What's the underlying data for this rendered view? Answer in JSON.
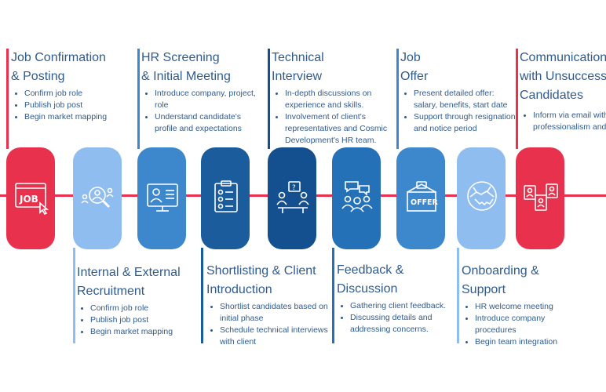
{
  "colors": {
    "red": "#e8324d",
    "light_blue": "#8fbdef",
    "mid_blue": "#3d87cc",
    "blue": "#2571b8",
    "dark_blue": "#1a5c9c",
    "navy": "#14508f",
    "text": "#2f5b8f"
  },
  "steps": [
    {
      "title_lines": [
        "Job Confirmation",
        "& Posting"
      ],
      "bullets": [
        "Confirm job role",
        "Publish job post",
        "Begin market mapping"
      ],
      "icon": "job-screen-icon",
      "color": "red"
    },
    {
      "title_lines": [
        "Internal & External",
        "Recruitment"
      ],
      "bullets": [
        "Confirm job role",
        "Publish job post",
        "Begin market mapping"
      ],
      "icon": "search-candidates-icon",
      "color": "light_blue"
    },
    {
      "title_lines": [
        "HR Screening",
        "& Initial Meeting"
      ],
      "bullets": [
        "Introduce company, project,",
        "role",
        "Understand candidate's",
        "profile and expectations"
      ],
      "icon": "video-call-icon",
      "color": "mid_blue"
    },
    {
      "title_lines": [
        "Shortlisting & Client",
        "Introduction"
      ],
      "bullets": [
        "Shortlist candidates based on",
        "initial phase",
        "Schedule technical interviews",
        "with client"
      ],
      "icon": "clipboard-list-icon",
      "color": "dark_blue"
    },
    {
      "title_lines": [
        "Technical",
        "Interview"
      ],
      "bullets": [
        "In-depth discussions on",
        "experience and skills.",
        "Involvement of client's",
        "representatives and Cosmic",
        "Development's HR team."
      ],
      "icon": "interview-icon",
      "color": "navy"
    },
    {
      "title_lines": [
        "Feedback &",
        "Discussion"
      ],
      "bullets": [
        "Gathering client feedback.",
        "Discussing details and",
        "addressing concerns."
      ],
      "icon": "group-discussion-icon",
      "color": "blue"
    },
    {
      "title_lines": [
        "Job",
        "Offer"
      ],
      "bullets": [
        "Present detailed offer:",
        "salary, benefits, start date",
        "Support through resignation",
        "and notice period"
      ],
      "icon": "offer-envelope-icon",
      "color": "mid_blue"
    },
    {
      "title_lines": [
        "Onboarding &",
        "Support"
      ],
      "bullets": [
        "HR welcome meeting",
        "Introduce company",
        "procedures",
        "Begin team integration"
      ],
      "icon": "handshake-icon",
      "color": "light_blue"
    },
    {
      "title_lines": [
        "Communication",
        "with Unsuccessful",
        "Candidates"
      ],
      "bullets": [
        "Inform via email with",
        "professionalism and"
      ],
      "icon": "profiles-icon",
      "color": "red"
    }
  ]
}
